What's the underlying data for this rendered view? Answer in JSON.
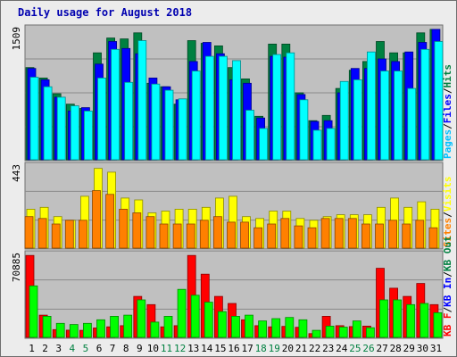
{
  "chart_data": {
    "type": "bar",
    "title": "Daily usage for August 2018",
    "categories": [
      "1",
      "2",
      "3",
      "4",
      "5",
      "6",
      "7",
      "8",
      "9",
      "10",
      "11",
      "12",
      "13",
      "14",
      "15",
      "16",
      "17",
      "18",
      "19",
      "20",
      "21",
      "22",
      "23",
      "24",
      "25",
      "26",
      "27",
      "28",
      "29",
      "30",
      "31"
    ],
    "weekend_categories": [
      "4",
      "5",
      "11",
      "12",
      "18",
      "19",
      "25",
      "26"
    ],
    "colors": {
      "hits": "#008040",
      "files": "#0000ff",
      "pages": "#00ffff",
      "visits": "#ffff00",
      "sites": "#ff8000",
      "kbf": "#ff0000",
      "kbin": "#0000ff",
      "kbout": "#00ff00",
      "title": "#0000b0",
      "weekday_label": "#000000",
      "weekend_label": "#008040",
      "panel_bg": "#c0c0c0",
      "outer_bg": "#ececec"
    },
    "panels": [
      {
        "key": "usage",
        "ymax_label": "1509",
        "ylim": [
          0,
          1509
        ],
        "right_labels": [
          {
            "text": "Pages",
            "color": "#00c0ff"
          },
          {
            "text": "/",
            "color": "#000000"
          },
          {
            "text": "Files",
            "color": "#0000ff"
          },
          {
            "text": "/",
            "color": "#000000"
          },
          {
            "text": "Hits",
            "color": "#008040"
          }
        ],
        "series": [
          {
            "name": "Hits",
            "color": "#008040",
            "values": [
              1060,
              940,
              760,
              640,
              590,
              1230,
              1400,
              1390,
              1460,
              880,
              840,
              640,
              1370,
              1340,
              1310,
              1060,
              930,
              500,
              1330,
              1330,
              770,
              450,
              510,
              820,
              1030,
              1130,
              1360,
              1230,
              1230,
              1460,
              1500
            ]
          },
          {
            "name": "Files",
            "color": "#0000ff",
            "values": [
              1050,
              920,
              720,
              560,
              600,
              1100,
              1360,
              1280,
              1220,
              940,
              840,
              690,
              1130,
              1350,
              1220,
              920,
              880,
              480,
              1190,
              1180,
              750,
              440,
              450,
              770,
              1050,
              1050,
              1160,
              1130,
              1240,
              1350,
              1500
            ]
          },
          {
            "name": "Pages",
            "color": "#00ffff",
            "values": [
              950,
              840,
              720,
              620,
              560,
              940,
              1270,
              890,
              1370,
              870,
              800,
              700,
              1020,
              1190,
              1190,
              1140,
              570,
              360,
              1210,
              1230,
              690,
              340,
              360,
              900,
              920,
              1240,
              1020,
              1020,
              820,
              1270,
              1360
            ]
          }
        ]
      },
      {
        "key": "visits",
        "ymax_label": "443",
        "ylim": [
          0,
          443
        ],
        "right_labels": [
          {
            "text": "Sites",
            "color": "#ff8000"
          },
          {
            "text": "/",
            "color": "#000000"
          },
          {
            "text": "Visits",
            "color": "#ffff00"
          }
        ],
        "series": [
          {
            "name": "Visits",
            "color": "#ffff00",
            "values": [
              210,
              220,
              170,
              150,
              280,
              430,
              410,
              270,
              260,
              190,
              200,
              210,
              210,
              220,
              270,
              280,
              170,
              160,
              200,
              200,
              160,
              150,
              170,
              180,
              180,
              180,
              220,
              270,
              220,
              250,
              210
            ]
          },
          {
            "name": "Sites",
            "color": "#ff8000",
            "values": [
              170,
              160,
              130,
              150,
              150,
              310,
              290,
              210,
              190,
              170,
              130,
              130,
              130,
              150,
              170,
              140,
              140,
              110,
              130,
              160,
              120,
              110,
              160,
              160,
              160,
              130,
              130,
              150,
              130,
              150,
              110
            ]
          }
        ]
      },
      {
        "key": "kbytes",
        "ymax_label": "70885",
        "ylim": [
          0,
          70885
        ],
        "right_labels": [
          {
            "text": "KB F",
            "color": "#ff0000"
          },
          {
            "text": "/",
            "color": "#000000"
          },
          {
            "text": "KB In",
            "color": "#0000ff"
          },
          {
            "text": "/",
            "color": "#000000"
          },
          {
            "text": "KB Out",
            "color": "#008040"
          }
        ],
        "series": [
          {
            "name": "KB F",
            "color": "#ff0000",
            "values": [
              70000,
              19000,
              6600,
              6200,
              6000,
              8000,
              9000,
              10000,
              35000,
              28000,
              9000,
              10000,
              70000,
              54000,
              35000,
              29000,
              15000,
              10000,
              9000,
              9400,
              8600,
              3200,
              18000,
              10000,
              9200,
              9600,
              59000,
              42000,
              35000,
              46000,
              28000
            ]
          },
          {
            "name": "KB In",
            "color": "#0000ff",
            "values": [
              0,
              0,
              0,
              0,
              0,
              0,
              0,
              0,
              0,
              0,
              0,
              0,
              0,
              0,
              0,
              0,
              0,
              0,
              0,
              0,
              0,
              0,
              0,
              0,
              0,
              0,
              0,
              0,
              0,
              0,
              0
            ]
          },
          {
            "name": "KB Out",
            "color": "#00ff00",
            "values": [
              44000,
              18000,
              12000,
              11000,
              12000,
              15000,
              18000,
              19000,
              32000,
              13000,
              18000,
              41000,
              36000,
              30000,
              22000,
              18000,
              19000,
              14000,
              16000,
              17000,
              15000,
              6000,
              9600,
              8800,
              14000,
              8200,
              32000,
              32000,
              28000,
              29000,
              21000
            ]
          }
        ]
      }
    ],
    "legend": "right"
  }
}
